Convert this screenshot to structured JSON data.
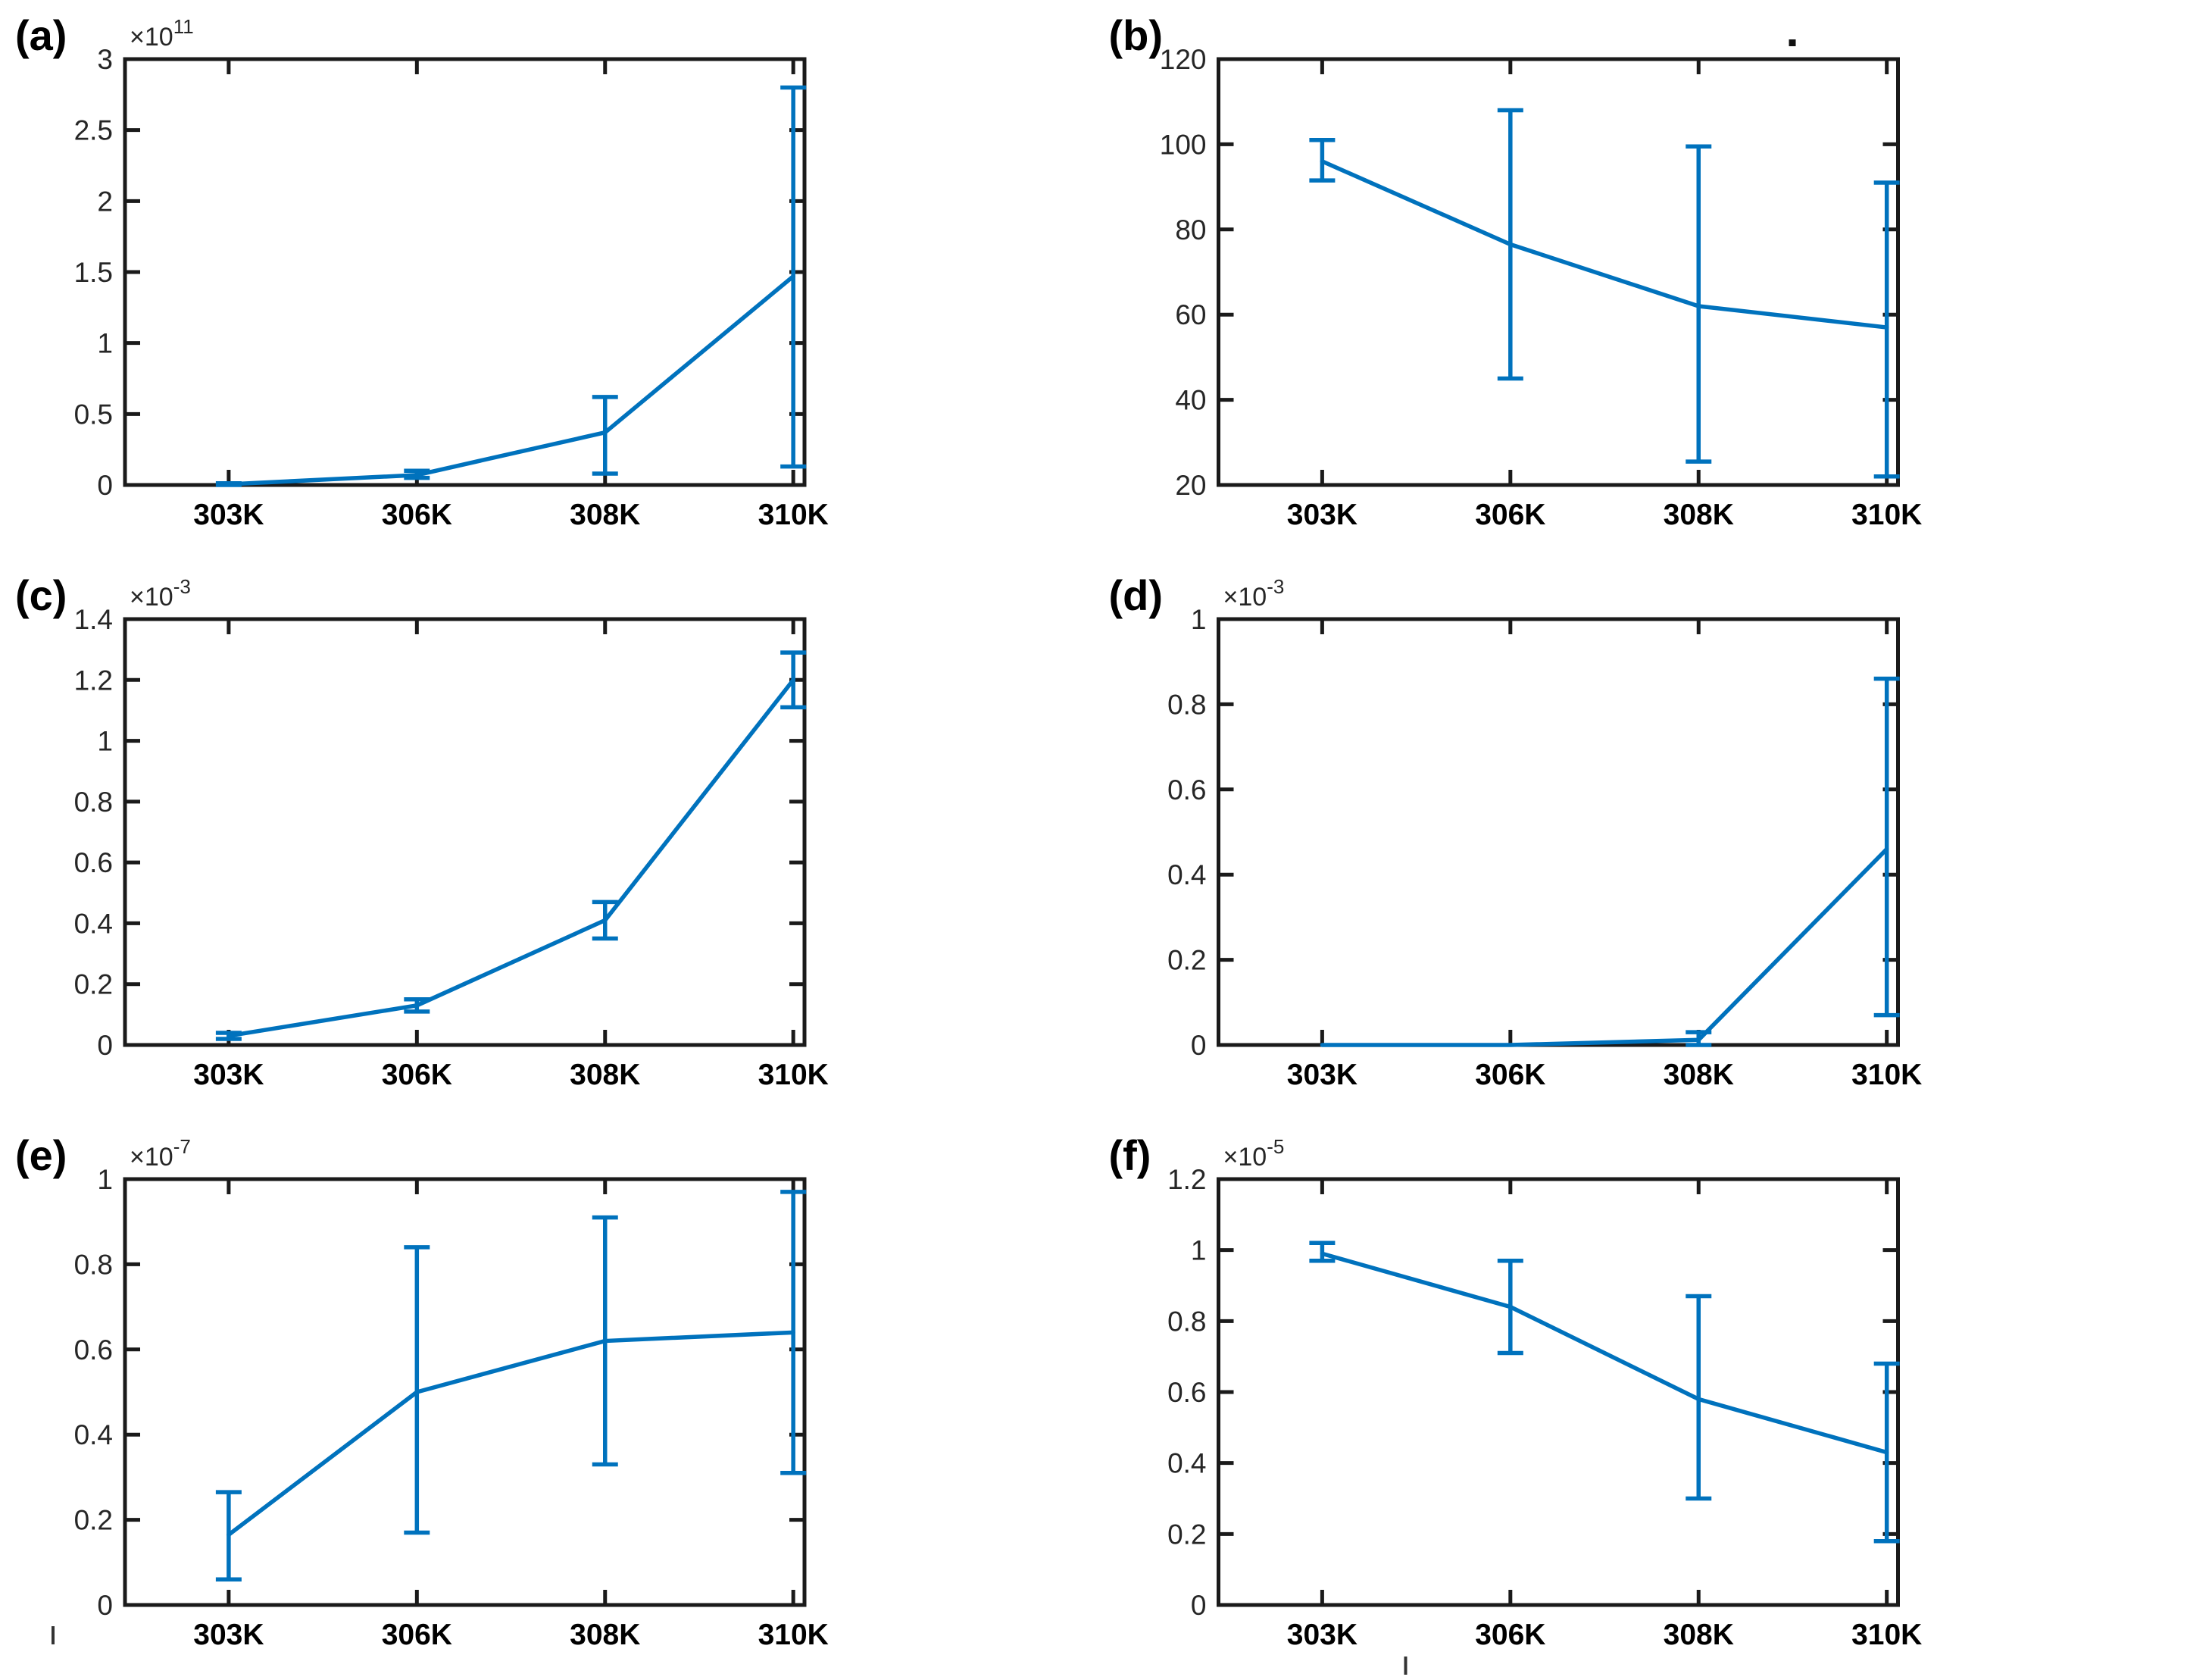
{
  "figure": {
    "description": "Six-panel MATLAB-style errorbar line plots versus temperature",
    "background": "#ffffff",
    "line_color": "#0072bd",
    "axis_color": "#1a1a1a",
    "tick_label_color": "#262626"
  },
  "chart_data": [
    {
      "type": "line",
      "panel_letter": "(a)",
      "exponent_prefix": "×10",
      "exponent": "11",
      "categories": [
        "303K",
        "306K",
        "308K",
        "310K"
      ],
      "series": [
        {
          "name": "mean",
          "values": [
            0.005,
            0.07,
            0.37,
            1.47
          ],
          "err_lo": [
            0.0,
            0.05,
            0.08,
            0.13
          ],
          "err_hi": [
            0.012,
            0.1,
            0.62,
            2.8
          ]
        }
      ],
      "title": "",
      "xlabel": "",
      "ylabel": "",
      "ylim": [
        0,
        3
      ],
      "yticks": [
        0,
        0.5,
        1,
        1.5,
        2,
        2.5,
        3
      ],
      "ytick_labels": [
        "0",
        "0.5",
        "1",
        "1.5",
        "2",
        "2.5",
        "3"
      ],
      "grid": false,
      "legend": null,
      "artifact": null
    },
    {
      "type": "line",
      "panel_letter": "(b)",
      "exponent_prefix": "",
      "exponent": null,
      "categories": [
        "303K",
        "306K",
        "308K",
        "310K"
      ],
      "series": [
        {
          "name": "mean",
          "values": [
            96,
            76.5,
            62,
            57
          ],
          "err_lo": [
            91.5,
            45,
            25.5,
            22
          ],
          "err_hi": [
            101,
            108,
            99.5,
            91
          ]
        }
      ],
      "title": "",
      "xlabel": "",
      "ylabel": "",
      "ylim": [
        20,
        120
      ],
      "yticks": [
        20,
        40,
        60,
        80,
        100,
        120
      ],
      "ytick_labels": [
        "20",
        "40",
        "60",
        "80",
        "100",
        "120"
      ],
      "grid": false,
      "legend": null,
      "artifact": {
        "kind": "dot",
        "x": 918,
        "y": 52
      }
    },
    {
      "type": "line",
      "panel_letter": "(c)",
      "exponent_prefix": "×10",
      "exponent": "-3",
      "categories": [
        "303K",
        "306K",
        "308K",
        "310K"
      ],
      "series": [
        {
          "name": "mean",
          "values": [
            0.03,
            0.13,
            0.41,
            1.2
          ],
          "err_lo": [
            0.02,
            0.11,
            0.35,
            1.11
          ],
          "err_hi": [
            0.04,
            0.15,
            0.47,
            1.29
          ]
        }
      ],
      "title": "",
      "xlabel": "",
      "ylabel": "",
      "ylim": [
        0,
        1.4
      ],
      "yticks": [
        0,
        0.2,
        0.4,
        0.6,
        0.8,
        1,
        1.2,
        1.4
      ],
      "ytick_labels": [
        "0",
        "0.2",
        "0.4",
        "0.6",
        "0.8",
        "1",
        "1.2",
        "1.4"
      ],
      "grid": false,
      "legend": null,
      "artifact": null
    },
    {
      "type": "line",
      "panel_letter": "(d)",
      "exponent_prefix": "×10",
      "exponent": "-3",
      "categories": [
        "303K",
        "306K",
        "308K",
        "310K"
      ],
      "series": [
        {
          "name": "mean",
          "values": [
            0.0,
            0.0,
            0.012,
            0.46
          ],
          "err_lo": [
            0.0,
            0.0,
            0.0,
            0.07
          ],
          "err_hi": [
            0.0,
            0.0,
            0.03,
            0.86
          ]
        }
      ],
      "title": "",
      "xlabel": "",
      "ylabel": "",
      "ylim": [
        0,
        1
      ],
      "yticks": [
        0,
        0.2,
        0.4,
        0.6,
        0.8,
        1
      ],
      "ytick_labels": [
        "0",
        "0.2",
        "0.4",
        "0.6",
        "0.8",
        "1"
      ],
      "grid": false,
      "legend": null,
      "artifact": null
    },
    {
      "type": "line",
      "panel_letter": "(e)",
      "exponent_prefix": "×10",
      "exponent": "-7",
      "categories": [
        "303K",
        "306K",
        "308K",
        "310K"
      ],
      "series": [
        {
          "name": "mean",
          "values": [
            0.165,
            0.5,
            0.62,
            0.64
          ],
          "err_lo": [
            0.06,
            0.17,
            0.33,
            0.31
          ],
          "err_hi": [
            0.265,
            0.84,
            0.91,
            0.97
          ]
        }
      ],
      "title": "",
      "xlabel": "",
      "ylabel": "",
      "ylim": [
        0,
        1
      ],
      "yticks": [
        0,
        0.2,
        0.4,
        0.6,
        0.8,
        1
      ],
      "ytick_labels": [
        "0",
        "0.2",
        "0.4",
        "0.6",
        "0.8",
        "1"
      ],
      "grid": false,
      "legend": null,
      "artifact": {
        "kind": "tick",
        "x": 70,
        "y": 668
      }
    },
    {
      "type": "line",
      "panel_letter": "(f)",
      "exponent_prefix": "×10",
      "exponent": "-5",
      "categories": [
        "303K",
        "306K",
        "308K",
        "310K"
      ],
      "series": [
        {
          "name": "mean",
          "values": [
            0.99,
            0.84,
            0.58,
            0.43
          ],
          "err_lo": [
            0.97,
            0.71,
            0.3,
            0.18
          ],
          "err_hi": [
            1.02,
            0.97,
            0.87,
            0.68
          ]
        }
      ],
      "title": "",
      "xlabel": "",
      "ylabel": "",
      "ylim": [
        0,
        1.2
      ],
      "yticks": [
        0,
        0.2,
        0.4,
        0.6,
        0.8,
        1,
        1.2
      ],
      "ytick_labels": [
        "0",
        "0.2",
        "0.4",
        "0.6",
        "0.8",
        "1",
        "1.2"
      ],
      "grid": false,
      "legend": null,
      "artifact": {
        "kind": "tick",
        "x": 412,
        "y": 708
      }
    }
  ]
}
